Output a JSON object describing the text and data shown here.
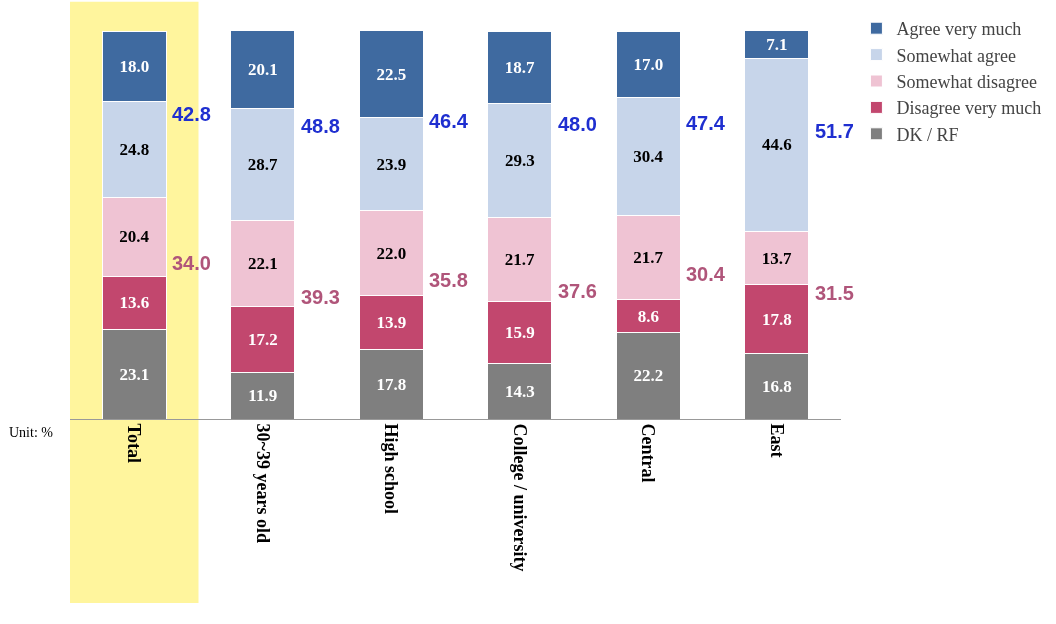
{
  "chart_data": {
    "type": "bar",
    "stacked": true,
    "tick_labels": "x",
    "legend": "right",
    "categories": [
      "Total",
      "30~39 years old",
      "High school",
      "College / university",
      "Central",
      "East"
    ],
    "series": [
      {
        "name": "DK / RF",
        "color": "#7f7f7f",
        "values": [
          23.1,
          11.9,
          17.8,
          14.3,
          22.2,
          16.8
        ],
        "value_labels": [
          "23.1",
          "11.9",
          "17.8",
          "14.3",
          "22.2",
          "16.8"
        ]
      },
      {
        "name": "Disagree very much",
        "color": "#c2476e",
        "values": [
          13.6,
          17.2,
          13.9,
          15.9,
          8.6,
          17.8
        ],
        "value_labels": [
          "13.6",
          "17.2",
          "13.9",
          "15.9",
          "8.6",
          "17.8"
        ]
      },
      {
        "name": "Somewhat disagree",
        "color": "#efc3d3",
        "values": [
          20.4,
          22.1,
          22.0,
          21.7,
          21.7,
          13.7
        ],
        "value_labels": [
          "20.4",
          "22.1",
          "22.0",
          "21.7",
          "21.7",
          "13.7"
        ]
      },
      {
        "name": "Somewhat agree",
        "color": "#c7d5ea",
        "values": [
          24.8,
          28.7,
          23.9,
          29.3,
          30.4,
          44.6
        ],
        "value_labels": [
          "24.8",
          "28.7",
          "23.9",
          "29.3",
          "30.4",
          "44.6"
        ]
      },
      {
        "name": "Agree very much",
        "color": "#3f6aa0",
        "values": [
          18.0,
          20.1,
          22.5,
          18.7,
          17.0,
          7.1
        ],
        "value_labels": [
          "18.0",
          "20.1",
          "22.5",
          "18.7",
          "17.0",
          "7.1"
        ]
      }
    ],
    "bands": [
      {
        "axis": "x",
        "from": "Total",
        "to": "Total",
        "color": "#fff59d"
      }
    ],
    "annotations": [
      "42.8",
      "48.8",
      "46.4",
      "48.0",
      "47.4",
      "51.7",
      "34.0",
      "39.3",
      "35.8",
      "37.6",
      "30.4",
      "31.5",
      "Unit: %"
    ]
  }
}
